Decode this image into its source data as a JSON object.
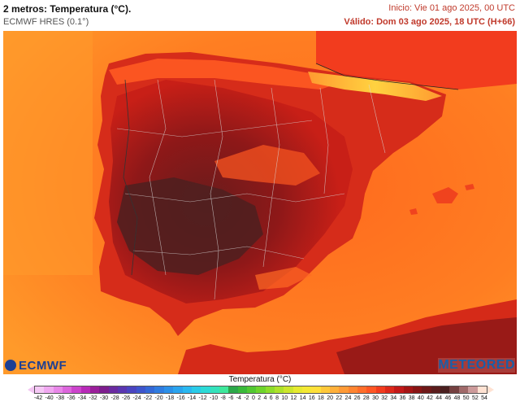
{
  "header": {
    "title": "2 metros: Temperatura (°C).",
    "model": "ECMWF HRES (0.1°)",
    "init": "Inicio: Vie 01 ago 2025, 00 UTC",
    "valid": "Válido: Dom 03 ago 2025, 18 UTC (H+66)"
  },
  "logos": {
    "left": "ECMWF",
    "right": "METEORED"
  },
  "legend": {
    "title": "Temperatura (°C)",
    "ticks": [
      "-42",
      "-40",
      "-38",
      "-36",
      "-34",
      "-32",
      "-30",
      "-28",
      "-26",
      "-24",
      "-22",
      "-20",
      "-18",
      "-16",
      "-14",
      "-12",
      "-10",
      "-8",
      "-6",
      "-4",
      "-2",
      "0",
      "2",
      "4",
      "6",
      "8",
      "10",
      "12",
      "14",
      "16",
      "18",
      "20",
      "22",
      "24",
      "26",
      "28",
      "30",
      "32",
      "34",
      "36",
      "38",
      "40",
      "42",
      "44",
      "46",
      "48",
      "50",
      "52",
      "54"
    ],
    "colors": [
      "#f5c8f5",
      "#f0a8f0",
      "#e887e8",
      "#dc66dc",
      "#cc44cc",
      "#b82ab8",
      "#9a1f9a",
      "#7d1d8e",
      "#6a2aa0",
      "#5a36b0",
      "#4a44c0",
      "#3d55cc",
      "#3468d6",
      "#2f7ce0",
      "#2b90e8",
      "#2aa4ee",
      "#2ab8f0",
      "#2acbe8",
      "#2cdad6",
      "#34e2bb",
      "#3ee89c",
      "#2ca84a",
      "#3aba3a",
      "#52c832",
      "#6ed42c",
      "#8edc2a",
      "#aee22a",
      "#cce62c",
      "#e6ea30",
      "#f4e834",
      "#ffe03a",
      "#ffc83a",
      "#ffb03a",
      "#ff9a36",
      "#ff8430",
      "#ff6e2a",
      "#ff5624",
      "#f23c1e",
      "#dc281a",
      "#c21818",
      "#a41414",
      "#881414",
      "#6e1818",
      "#5a1c1c",
      "#4a2020",
      "#744040",
      "#a06a6a",
      "#cc9a9a",
      "#ffe2d2"
    ]
  }
}
